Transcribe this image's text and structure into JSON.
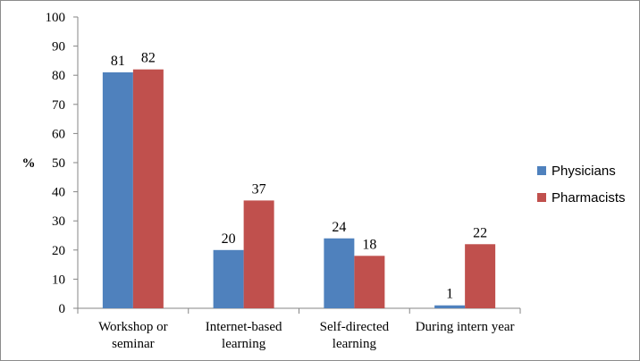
{
  "chart_data": {
    "type": "bar",
    "categories": [
      [
        "Workshop or",
        "seminar"
      ],
      [
        "Internet-based",
        "learning"
      ],
      [
        "Self-directed",
        "learning"
      ],
      [
        "During intern year"
      ]
    ],
    "series": [
      {
        "name": "Physicians",
        "color": "#4F81BD",
        "values": [
          81,
          20,
          24,
          1
        ]
      },
      {
        "name": "Pharmacists",
        "color": "#C0504D",
        "values": [
          82,
          37,
          18,
          22
        ]
      }
    ],
    "ylabel": "%",
    "xlabel": "",
    "ylim": [
      0,
      100
    ],
    "yticks": [
      0,
      10,
      20,
      30,
      40,
      50,
      60,
      70,
      80,
      90,
      100
    ],
    "grid": false,
    "legend_position": "right"
  }
}
